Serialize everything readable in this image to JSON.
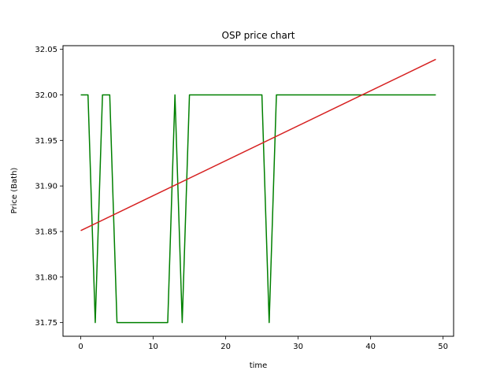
{
  "chart_data": {
    "type": "line",
    "title": "OSP price chart",
    "xlabel": "time",
    "ylabel": "Price (Bath)",
    "xlim": [
      -2.45,
      51.45
    ],
    "ylim": [
      31.735,
      32.054
    ],
    "xticks": [
      0,
      10,
      20,
      30,
      40,
      50
    ],
    "xtick_labels": [
      "0",
      "10",
      "20",
      "30",
      "40",
      "50"
    ],
    "yticks": [
      31.75,
      31.8,
      31.85,
      31.9,
      31.95,
      32.0,
      32.05
    ],
    "ytick_labels": [
      "31.75",
      "31.80",
      "31.85",
      "31.90",
      "31.95",
      "32.00",
      "32.05"
    ],
    "grid": false,
    "series": [
      {
        "color": "#008000",
        "x": [
          0,
          1,
          2,
          3,
          4,
          5,
          6,
          7,
          8,
          9,
          10,
          11,
          12,
          13,
          14,
          15,
          16,
          17,
          18,
          19,
          20,
          21,
          22,
          23,
          24,
          25,
          26,
          27,
          28,
          29,
          30,
          31,
          32,
          33,
          34,
          35,
          36,
          37,
          38,
          39,
          40,
          41,
          42,
          43,
          44,
          45,
          46,
          47,
          48,
          49
        ],
        "values": [
          32.0,
          32.0,
          31.75,
          32.0,
          32.0,
          31.75,
          31.75,
          31.75,
          31.75,
          31.75,
          31.75,
          31.75,
          31.75,
          32.0,
          31.75,
          32.0,
          32.0,
          32.0,
          32.0,
          32.0,
          32.0,
          32.0,
          32.0,
          32.0,
          32.0,
          32.0,
          31.75,
          32.0,
          32.0,
          32.0,
          32.0,
          32.0,
          32.0,
          32.0,
          32.0,
          32.0,
          32.0,
          32.0,
          32.0,
          32.0,
          32.0,
          32.0,
          32.0,
          32.0,
          32.0,
          32.0,
          32.0,
          32.0,
          32.0,
          32.0
        ]
      },
      {
        "color": "#d62020",
        "x": [
          0,
          49
        ],
        "values": [
          31.851,
          32.039
        ]
      }
    ]
  }
}
